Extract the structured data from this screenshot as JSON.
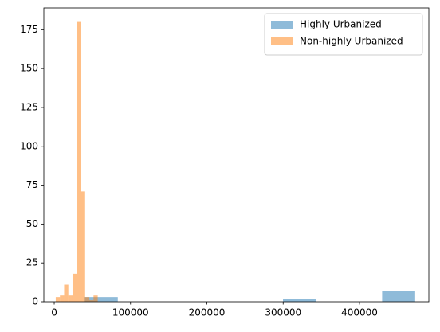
{
  "chart_data": {
    "type": "histogram",
    "series": [
      {
        "name": "Highly Urbanized",
        "color": "#1f77b4",
        "bins": [
          40000,
          83300,
          126600,
          169900,
          213200,
          256500,
          299800,
          343100,
          386400,
          429700,
          473000
        ],
        "values": [
          3,
          0,
          0,
          0,
          0,
          0,
          2,
          0,
          0,
          7
        ]
      },
      {
        "name": "Non-highly Urbanized",
        "color": "#ff7f0e",
        "bins": [
          2000,
          7500,
          13000,
          18500,
          24000,
          29500,
          35000,
          40500,
          46000,
          51500,
          57000
        ],
        "values": [
          3,
          4,
          11,
          4,
          18,
          180,
          71,
          3,
          1,
          4
        ]
      }
    ],
    "alpha": 0.5,
    "xlim": [
      -13600,
      490900
    ],
    "xticks": [
      0,
      100000,
      200000,
      300000,
      400000
    ],
    "ylim": [
      0,
      189
    ],
    "yticks": [
      0,
      25,
      50,
      75,
      100,
      125,
      150,
      175
    ],
    "legend": "upper right"
  }
}
